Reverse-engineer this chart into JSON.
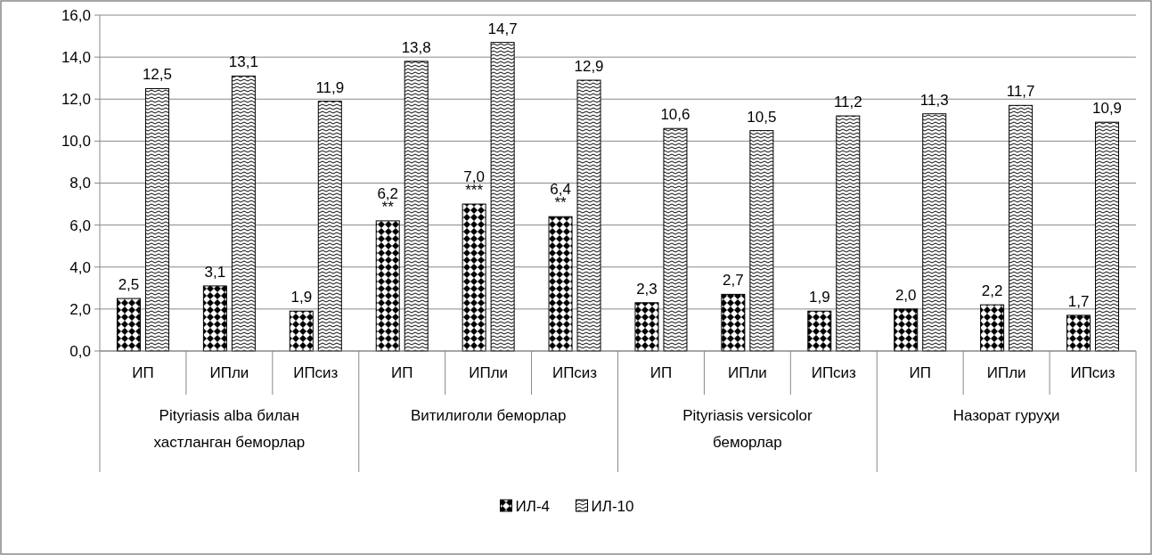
{
  "chart_data": {
    "type": "bar",
    "categories": [
      "ИП",
      "ИПли",
      "ИПсиз",
      "ИП",
      "ИПли",
      "ИПсиз",
      "ИП",
      "ИПли",
      "ИПсиз",
      "ИП",
      "ИПли",
      "ИПсиз"
    ],
    "series": [
      {
        "name": "ИЛ-4",
        "color": "#000000",
        "values": [
          2.5,
          3.1,
          1.9,
          6.2,
          7.0,
          6.4,
          2.3,
          2.7,
          1.9,
          2.0,
          2.2,
          1.7
        ],
        "value_labels": [
          "2,5",
          "3,1",
          "1,9",
          "6,2\n**",
          "7,0\n***",
          "6,4\n**",
          "2,3",
          "2,7",
          "1,9",
          "2,0",
          "2,2",
          "1,7"
        ]
      },
      {
        "name": "ИЛ-10",
        "color": "#000000",
        "values": [
          12.5,
          13.1,
          11.9,
          13.8,
          14.7,
          12.9,
          10.6,
          10.5,
          11.2,
          11.3,
          11.7,
          10.9
        ],
        "value_labels": [
          "12,5",
          "13,1",
          "11,9",
          "13,8",
          "14,7",
          "12,9",
          "10,6",
          "10,5",
          "11,2",
          "11,3",
          "11,7",
          "10,9"
        ]
      }
    ],
    "annotations": [
      "Pityriasis alba билан хастланган беморлар",
      "Витилиголи беморлар",
      "Pityriasis versicolor беморлар",
      "Назорат гуруҳи"
    ],
    "ylim": [
      0,
      16
    ],
    "yticks": [
      {
        "value": 0,
        "label": "0,0"
      },
      {
        "value": 2,
        "label": "2,0"
      },
      {
        "value": 4,
        "label": "4,0"
      },
      {
        "value": 6,
        "label": "6,0"
      },
      {
        "value": 8,
        "label": "8,0"
      },
      {
        "value": 10,
        "label": "10,0"
      },
      {
        "value": 12,
        "label": "12,0"
      },
      {
        "value": 14,
        "label": "14,0"
      },
      {
        "value": 16,
        "label": "16,0"
      }
    ],
    "grid": "y",
    "legend": "bottom"
  }
}
